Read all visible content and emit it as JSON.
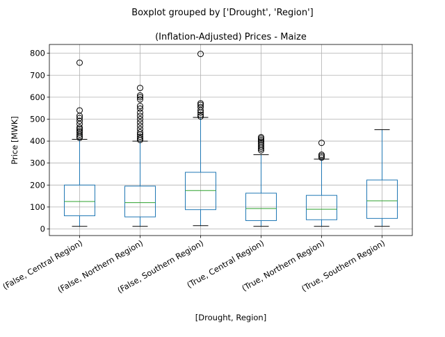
{
  "chart_data": {
    "type": "boxplot",
    "suptitle": "Boxplot grouped by ['Drought', 'Region']",
    "title": "(Inflation-Adjusted) Prices - Maize",
    "xlabel": "[Drought, Region]",
    "ylabel": "Price [MWK]",
    "ylim": [
      -30,
      840
    ],
    "yticks": [
      0,
      100,
      200,
      300,
      400,
      500,
      600,
      700,
      800
    ],
    "grid": true,
    "colors": {
      "box": "#1f77b4",
      "median": "#2ca02c",
      "whisker": "#1f77b4",
      "cap": "#000000",
      "flier": "#000000",
      "grid": "#b0b0b0"
    },
    "categories": [
      "(False, Central Region)",
      "(False, Northern Region)",
      "(False, Southern Region)",
      "(True, Central Region)",
      "(True, Northern Region)",
      "(True, Southern Region)"
    ],
    "boxes": [
      {
        "whislo": 12,
        "q1": 60,
        "med": 125,
        "q3": 200,
        "whishi": 408,
        "fliers": [
          415,
          422,
          430,
          440,
          447,
          455,
          462,
          478,
          492,
          505,
          515,
          540,
          757
        ]
      },
      {
        "whislo": 12,
        "q1": 55,
        "med": 120,
        "q3": 195,
        "whishi": 400,
        "fliers": [
          405,
          412,
          420,
          430,
          440,
          455,
          470,
          485,
          500,
          515,
          530,
          548,
          560,
          590,
          600,
          608,
          642
        ]
      },
      {
        "whislo": 15,
        "q1": 88,
        "med": 175,
        "q3": 258,
        "whishi": 508,
        "fliers": [
          512,
          520,
          530,
          540,
          555,
          565,
          572,
          797
        ]
      },
      {
        "whislo": 12,
        "q1": 38,
        "med": 93,
        "q3": 163,
        "whishi": 338,
        "fliers": [
          358,
          366,
          374,
          382,
          390,
          398,
          405,
          412,
          418
        ]
      },
      {
        "whislo": 12,
        "q1": 42,
        "med": 90,
        "q3": 153,
        "whishi": 318,
        "fliers": [
          325,
          332,
          338,
          392
        ]
      },
      {
        "whislo": 12,
        "q1": 48,
        "med": 128,
        "q3": 223,
        "whishi": 452,
        "fliers": []
      }
    ]
  }
}
